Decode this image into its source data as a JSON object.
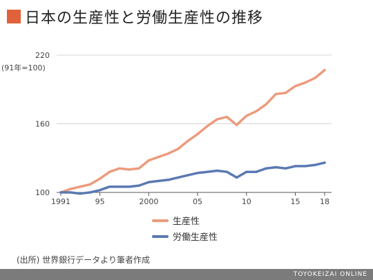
{
  "header": {
    "title": "日本の生産性と労働生産性の推移",
    "accent_color": "#e0613a"
  },
  "chart_data": {
    "type": "line",
    "title": "日本の生産性と労働生産性の推移",
    "ylabel": "(91年=100)",
    "xlabel": "",
    "x": [
      1991,
      1992,
      1993,
      1994,
      1995,
      1996,
      1997,
      1998,
      1999,
      2000,
      2001,
      2002,
      2003,
      2004,
      2005,
      2006,
      2007,
      2008,
      2009,
      2010,
      2011,
      2012,
      2013,
      2014,
      2015,
      2016,
      2017,
      2018
    ],
    "xlim": [
      1991,
      2018
    ],
    "ylim": [
      100,
      220
    ],
    "yticks": [
      100,
      160,
      220
    ],
    "xticks": [
      {
        "x": 1991,
        "label": "1991"
      },
      {
        "x": 1995,
        "label": "95"
      },
      {
        "x": 2000,
        "label": "2000"
      },
      {
        "x": 2005,
        "label": "05"
      },
      {
        "x": 2010,
        "label": "10"
      },
      {
        "x": 2015,
        "label": "15"
      },
      {
        "x": 2018,
        "label": "18"
      }
    ],
    "grid": true,
    "legend_position": "bottom",
    "series": [
      {
        "name": "生産性",
        "color": "#ec9b7c",
        "values": [
          100,
          103,
          105,
          107,
          112,
          118,
          121,
          120,
          121,
          128,
          131,
          134,
          138,
          145,
          151,
          158,
          164,
          166,
          159,
          167,
          171,
          177,
          186,
          187,
          193,
          196,
          200,
          207
        ]
      },
      {
        "name": "労働生産性",
        "color": "#5a79b2",
        "values": [
          100,
          100,
          99,
          100,
          102,
          105,
          105,
          105,
          106,
          109,
          110,
          111,
          113,
          115,
          117,
          118,
          119,
          118,
          113,
          118,
          118,
          121,
          122,
          121,
          123,
          123,
          124,
          126
        ]
      }
    ]
  },
  "source": "(出所) 世界銀行データより筆者作成",
  "footer": "TOYOKEIZAI ONLINE"
}
